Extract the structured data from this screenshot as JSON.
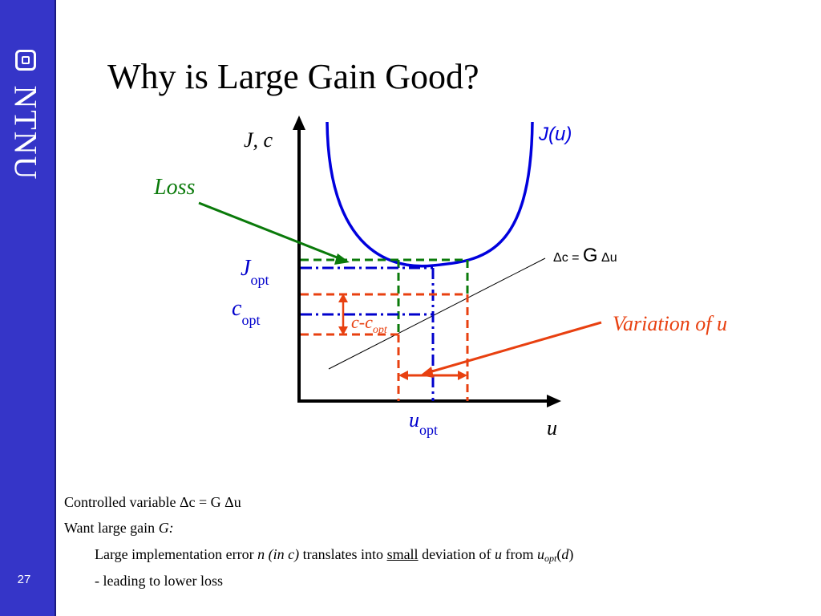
{
  "sidebar": {
    "logo_text": "NTNU",
    "page_number": "27"
  },
  "title": "Why is Large Gain Good?",
  "diagram": {
    "y_axis_label": "J, c",
    "x_axis_label": "u",
    "curve_label": "J(u)",
    "loss_label": "Loss",
    "j_opt": {
      "main": "J",
      "sub": "opt"
    },
    "c_opt": {
      "main": "c",
      "sub": "opt"
    },
    "u_opt": {
      "main": "u",
      "sub": "opt"
    },
    "c_minus_copt": {
      "main": "c-c",
      "sub": "opt"
    },
    "gain_relation": {
      "prefix": "Δc = ",
      "gain": "G",
      "suffix": " Δu"
    },
    "variation_label": "Variation of u",
    "colors": {
      "curve": "#0000dd",
      "loss": "#0a7a0a",
      "variation": "#e84010",
      "opt": "#0000cc",
      "axis": "#000000"
    }
  },
  "body": {
    "line1": {
      "text": "Controlled variable Δc = G Δu"
    },
    "line2": {
      "text": "Want large gain ",
      "italic": "G:"
    },
    "line3": {
      "t1": "Large implementation error ",
      "i1": "n (in c)",
      "t2": " translates into ",
      "u1": "small",
      "t3": " deviation of ",
      "i2": "u",
      "t4": " from ",
      "i3": "u",
      "sub": "opt",
      "t5": "(",
      "i4": "d",
      "t6": ")"
    },
    "line4": {
      "text": "- leading to lower loss"
    }
  }
}
